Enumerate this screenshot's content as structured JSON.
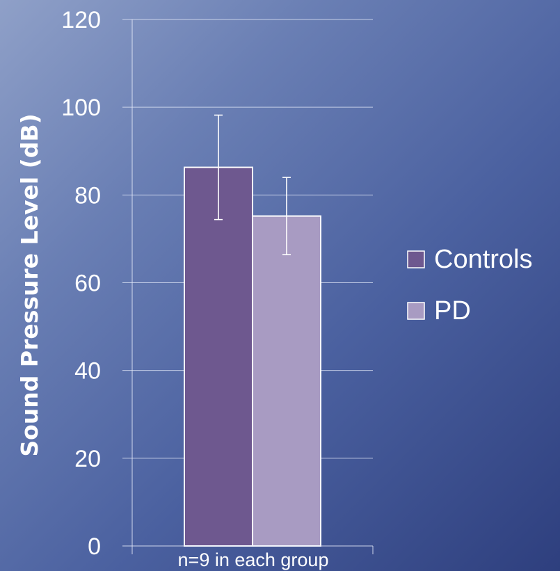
{
  "chart_data": {
    "type": "bar",
    "ylabel": "Sound Pressure Level (dB)",
    "categories": [
      "n=9 in each group"
    ],
    "ylim": [
      0,
      120
    ],
    "yticks": [
      0,
      20,
      40,
      60,
      80,
      100,
      120
    ],
    "grid": true,
    "legend_position": "right",
    "series": [
      {
        "name": "Controls",
        "values": [
          86.3
        ],
        "error": [
          11.9
        ],
        "color": "#6e588f"
      },
      {
        "name": "PD",
        "values": [
          75.2
        ],
        "error": [
          8.8
        ],
        "color": "#a89bc2"
      }
    ]
  }
}
